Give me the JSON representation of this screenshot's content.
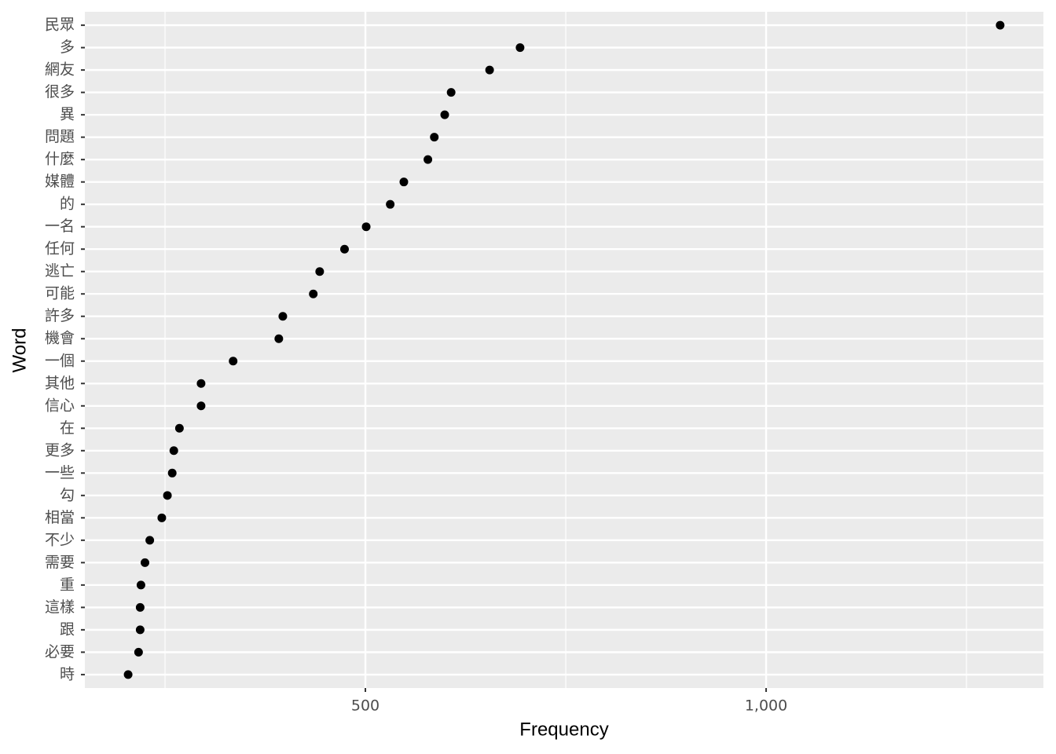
{
  "chart_data": {
    "type": "dot",
    "x_label": "Frequency",
    "y_label": "Word",
    "categories": [
      "民眾",
      "多",
      "網友",
      "很多",
      "異",
      "問題",
      "什麼",
      "媒體",
      "的",
      "一名",
      "任何",
      "逃亡",
      "可能",
      "許多",
      "機會",
      "一個",
      "其他",
      "信心",
      "在",
      "更多",
      "一些",
      "勾",
      "相當",
      "不少",
      "需要",
      "重",
      "這樣",
      "跟",
      "必要",
      "時"
    ],
    "values": [
      1292,
      693,
      655,
      607,
      599,
      586,
      578,
      548,
      531,
      501,
      474,
      443,
      435,
      397,
      392,
      335,
      295,
      295,
      268,
      261,
      259,
      253,
      246,
      231,
      225,
      220,
      219,
      219,
      217,
      204
    ],
    "color": "#000000",
    "xlim": [
      150,
      1346
    ],
    "xticks": [
      500,
      {
        "value": 1000,
        "label": "1,000"
      }
    ],
    "minor_xticks": [
      250,
      750,
      1250
    ],
    "grid": true
  }
}
